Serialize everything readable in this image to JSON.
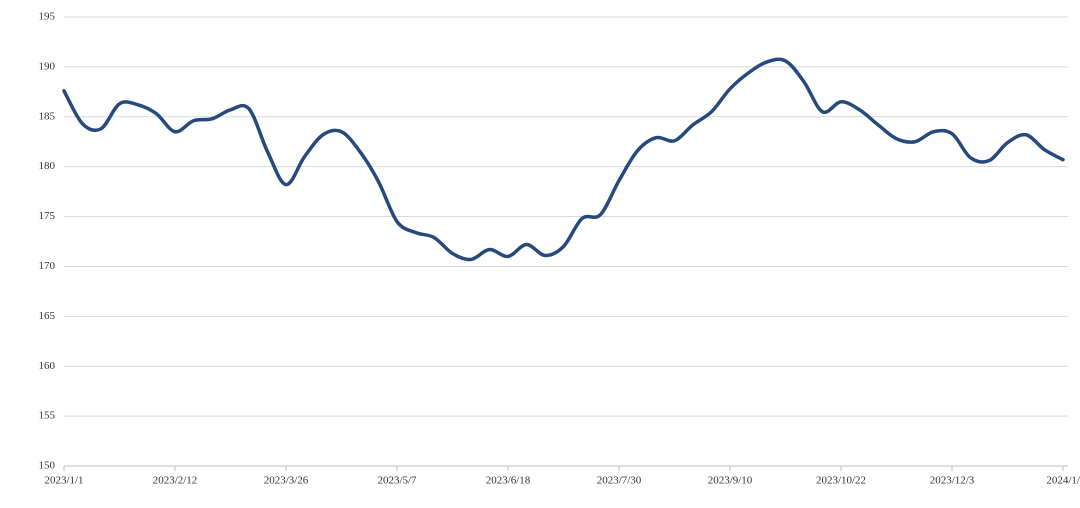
{
  "chart_data": {
    "type": "line",
    "categories": [
      "2023/1/1",
      null,
      null,
      null,
      null,
      null,
      "2023/2/12",
      null,
      null,
      null,
      null,
      null,
      "2023/3/26",
      null,
      null,
      null,
      null,
      null,
      "2023/5/7",
      null,
      null,
      null,
      null,
      null,
      "2023/6/18",
      null,
      null,
      null,
      null,
      null,
      "2023/7/30",
      null,
      null,
      null,
      null,
      null,
      "2023/9/10",
      null,
      null,
      null,
      null,
      null,
      "2023/10/22",
      null,
      null,
      null,
      null,
      null,
      "2023/12/3",
      null,
      null,
      null,
      null,
      null,
      "2024/1/"
    ],
    "series": [
      {
        "color": "#264a7c",
        "values": [
          187.6,
          184.3,
          183.8,
          186.3,
          186.2,
          185.3,
          183.5,
          184.6,
          184.8,
          185.7,
          185.8,
          181.5,
          178.2,
          181,
          183.2,
          183.5,
          181.5,
          178.5,
          174.5,
          173.4,
          172.9,
          171.3,
          170.7,
          171.7,
          171,
          172.2,
          171.1,
          172,
          174.8,
          175.2,
          178.6,
          181.6,
          182.9,
          182.6,
          184.2,
          185.5,
          187.8,
          189.4,
          190.5,
          190.6,
          188.5,
          185.5,
          186.5,
          185.7,
          184.2,
          182.8,
          182.5,
          183.5,
          183.3,
          180.9,
          180.6,
          182.4,
          183.2,
          181.7,
          180.7
        ]
      }
    ],
    "ylim": [
      150,
      195
    ],
    "yticks": [
      150,
      155,
      160,
      165,
      170,
      175,
      180,
      185,
      190,
      195
    ],
    "grid": true
  }
}
